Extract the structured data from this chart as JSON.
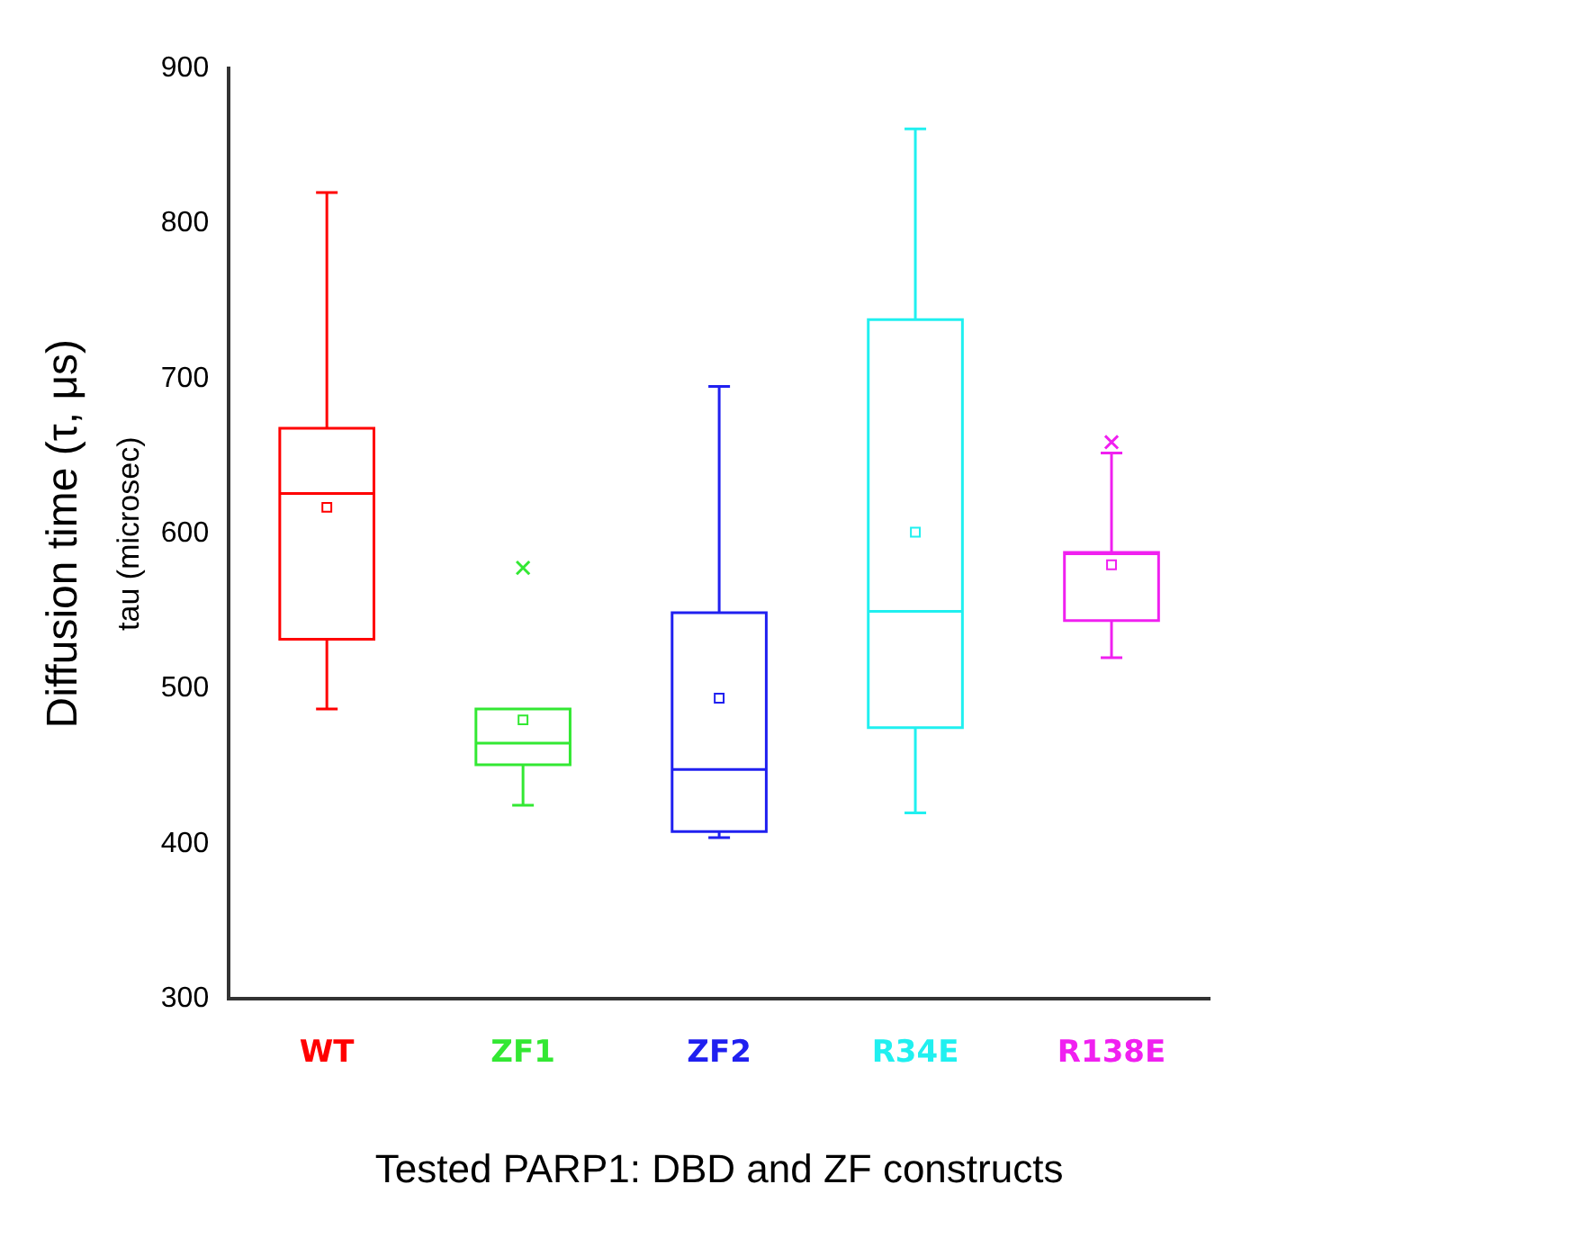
{
  "chart_data": {
    "type": "box",
    "xlabel": "Tested PARP1: DBD and ZF constructs",
    "ylabel": "tau (microsec)",
    "annotations": [
      "Diffusion time (τ, μs)"
    ],
    "categories": [
      "WT",
      "ZF1",
      "ZF2",
      "R34E",
      "R138E"
    ],
    "colors": [
      "#ff0000",
      "#33e833",
      "#2020f0",
      "#20f0f0",
      "#f020f0"
    ],
    "boxes": [
      {
        "low": 487,
        "q1": 532,
        "median": 626,
        "q3": 668,
        "high": 820,
        "mean": 617
      },
      {
        "low": 425,
        "q1": 451,
        "median": 465,
        "q3": 487,
        "high": 487,
        "mean": 480,
        "outliers": [
          578
        ]
      },
      {
        "low": 404,
        "q1": 408,
        "median": 448,
        "q3": 549,
        "high": 695,
        "mean": 494
      },
      {
        "low": 420,
        "q1": 475,
        "median": 550,
        "q3": 738,
        "high": 861,
        "mean": 601
      },
      {
        "low": 520,
        "q1": 544,
        "median": 587,
        "q3": 588,
        "high": 652,
        "mean": 580,
        "outliers": [
          659
        ]
      }
    ],
    "ylim": [
      300,
      900
    ],
    "yticks": [
      300,
      400,
      500,
      600,
      700,
      800,
      900
    ],
    "grid": false,
    "legend": false
  }
}
